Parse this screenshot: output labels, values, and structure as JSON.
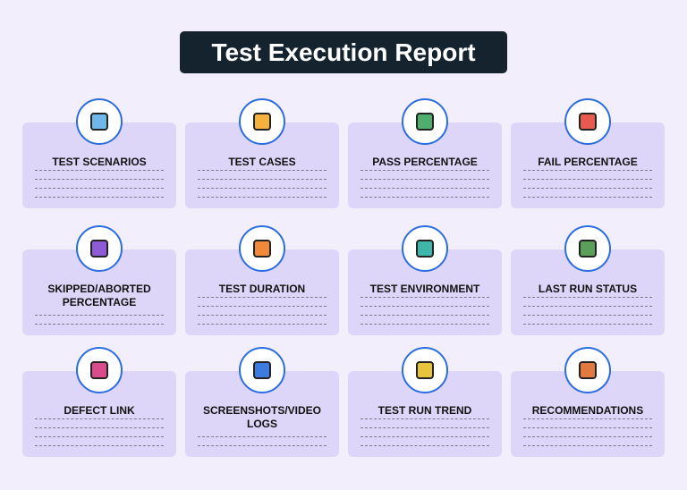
{
  "header": {
    "title": "Test Execution Report"
  },
  "cards": [
    {
      "label": "TEST SCENARIOS"
    },
    {
      "label": "TEST CASES"
    },
    {
      "label": "PASS PERCENTAGE"
    },
    {
      "label": "FAIL PERCENTAGE"
    },
    {
      "label": "SKIPPED/ABORTED PERCENTAGE"
    },
    {
      "label": "TEST DURATION"
    },
    {
      "label": "TEST ENVIRONMENT"
    },
    {
      "label": "LAST RUN STATUS"
    },
    {
      "label": "DEFECT LINK"
    },
    {
      "label": "SCREENSHOTS/VIDEO LOGS"
    },
    {
      "label": "TEST RUN TREND"
    },
    {
      "label": "RECOMMENDATIONS"
    }
  ]
}
